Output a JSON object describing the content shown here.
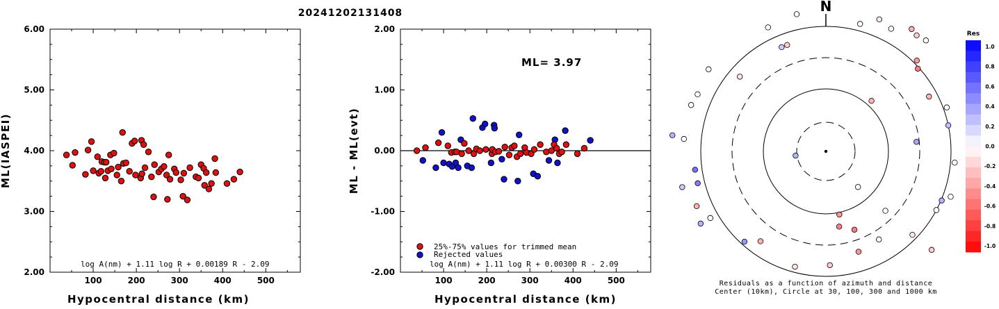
{
  "page_title": "20241202131408",
  "colors": {
    "accepted": "#dd1111",
    "rejected": "#1111cc",
    "outline": "#000000"
  },
  "chart_data": [
    {
      "type": "scatter",
      "id": "left",
      "ylabel": "ML(IASPEI)",
      "xlabel": "Hypocentral distance (km)",
      "xlim": [
        0,
        580
      ],
      "ylim": [
        2.0,
        6.0
      ],
      "xticks": [
        100,
        200,
        300,
        400,
        500
      ],
      "yticks": [
        2.0,
        3.0,
        4.0,
        5.0,
        6.0
      ],
      "ytick_labels": [
        "2.00",
        "3.00",
        "4.00",
        "5.00",
        "6.00"
      ],
      "formula": "log A(nm) + 1.11 log R + 0.00189 R - 2.09",
      "points": [
        [
          38,
          3.93
        ],
        [
          52,
          3.76
        ],
        [
          58,
          3.97
        ],
        [
          82,
          3.61
        ],
        [
          88,
          4.01
        ],
        [
          96,
          4.15
        ],
        [
          100,
          3.67
        ],
        [
          110,
          3.9
        ],
        [
          113,
          3.63
        ],
        [
          118,
          3.66
        ],
        [
          120,
          3.82
        ],
        [
          126,
          3.81
        ],
        [
          128,
          3.55
        ],
        [
          130,
          3.81
        ],
        [
          134,
          3.67
        ],
        [
          140,
          3.93
        ],
        [
          142,
          3.7
        ],
        [
          148,
          3.96
        ],
        [
          155,
          3.6
        ],
        [
          158,
          3.73
        ],
        [
          165,
          3.5
        ],
        [
          168,
          4.3
        ],
        [
          170,
          3.79
        ],
        [
          176,
          3.8
        ],
        [
          184,
          3.66
        ],
        [
          190,
          4.12
        ],
        [
          196,
          4.16
        ],
        [
          198,
          3.6
        ],
        [
          210,
          3.55
        ],
        [
          212,
          4.17
        ],
        [
          213,
          3.62
        ],
        [
          217,
          4.1
        ],
        [
          220,
          3.72
        ],
        [
          228,
          3.98
        ],
        [
          235,
          3.57
        ],
        [
          240,
          3.24
        ],
        [
          242,
          3.77
        ],
        [
          252,
          3.65
        ],
        [
          258,
          3.7
        ],
        [
          264,
          3.74
        ],
        [
          270,
          3.6
        ],
        [
          272,
          3.2
        ],
        [
          275,
          3.93
        ],
        [
          278,
          3.53
        ],
        [
          288,
          3.7
        ],
        [
          292,
          3.64
        ],
        [
          303,
          3.52
        ],
        [
          308,
          3.25
        ],
        [
          310,
          3.63
        ],
        [
          318,
          3.19
        ],
        [
          324,
          3.72
        ],
        [
          338,
          3.57
        ],
        [
          344,
          3.55
        ],
        [
          350,
          3.77
        ],
        [
          356,
          3.71
        ],
        [
          358,
          3.43
        ],
        [
          362,
          3.64
        ],
        [
          368,
          3.37
        ],
        [
          374,
          3.46
        ],
        [
          382,
          3.87
        ],
        [
          384,
          3.64
        ],
        [
          410,
          3.46
        ],
        [
          426,
          3.53
        ],
        [
          440,
          3.65
        ]
      ]
    },
    {
      "type": "scatter",
      "id": "middle",
      "ylabel": "ML - ML(evt)",
      "xlabel": "Hypocentral distance (km)",
      "xlim": [
        0,
        580
      ],
      "ylim": [
        -2.0,
        2.0
      ],
      "xticks": [
        100,
        200,
        300,
        400,
        500
      ],
      "yticks": [
        -2.0,
        -1.0,
        0.0,
        1.0,
        2.0
      ],
      "ytick_labels": [
        "-2.00",
        "-1.00",
        "0.00",
        "1.00",
        "2.00"
      ],
      "reference_line": 0.0,
      "annotation": "ML= 3.97",
      "formula": "log A(nm) + 1.11 log R + 0.00300 R - 2.09",
      "legend": [
        {
          "label": "25%-75% values for trimmed mean",
          "color": "#dd1111"
        },
        {
          "label": "Rejected values",
          "color": "#1111cc"
        }
      ],
      "accepted": [
        [
          38,
          0.0
        ],
        [
          58,
          0.05
        ],
        [
          88,
          0.13
        ],
        [
          110,
          0.08
        ],
        [
          118,
          -0.03
        ],
        [
          126,
          -0.02
        ],
        [
          130,
          -0.02
        ],
        [
          142,
          -0.05
        ],
        [
          148,
          0.12
        ],
        [
          158,
          0.0
        ],
        [
          170,
          -0.05
        ],
        [
          176,
          0.03
        ],
        [
          184,
          0.0
        ],
        [
          198,
          0.02
        ],
        [
          212,
          -0.05
        ],
        [
          213,
          0.02
        ],
        [
          220,
          -0.02
        ],
        [
          228,
          -0.01
        ],
        [
          242,
          0.06
        ],
        [
          252,
          -0.07
        ],
        [
          258,
          0.05
        ],
        [
          264,
          0.08
        ],
        [
          270,
          -0.1
        ],
        [
          278,
          -0.05
        ],
        [
          288,
          0.05
        ],
        [
          292,
          -0.03
        ],
        [
          303,
          -0.05
        ],
        [
          310,
          0.02
        ],
        [
          324,
          0.1
        ],
        [
          338,
          -0.02
        ],
        [
          350,
          0.0
        ],
        [
          356,
          0.1
        ],
        [
          362,
          0.04
        ],
        [
          368,
          -0.05
        ],
        [
          374,
          -0.02
        ],
        [
          384,
          0.1
        ],
        [
          410,
          -0.05
        ],
        [
          426,
          0.04
        ]
      ],
      "rejected": [
        [
          52,
          -0.16
        ],
        [
          82,
          -0.28
        ],
        [
          96,
          0.3
        ],
        [
          100,
          -0.2
        ],
        [
          113,
          -0.22
        ],
        [
          120,
          -0.26
        ],
        [
          128,
          -0.2
        ],
        [
          134,
          -0.28
        ],
        [
          140,
          0.18
        ],
        [
          155,
          -0.25
        ],
        [
          165,
          -0.28
        ],
        [
          168,
          0.53
        ],
        [
          190,
          0.38
        ],
        [
          196,
          0.44
        ],
        [
          210,
          -0.2
        ],
        [
          217,
          0.42
        ],
        [
          218,
          0.37
        ],
        [
          235,
          -0.14
        ],
        [
          240,
          -0.47
        ],
        [
          272,
          -0.5
        ],
        [
          275,
          0.26
        ],
        [
          308,
          -0.38
        ],
        [
          318,
          -0.42
        ],
        [
          344,
          -0.16
        ],
        [
          358,
          0.18
        ],
        [
          364,
          -0.2
        ],
        [
          382,
          0.33
        ],
        [
          440,
          0.17
        ]
      ]
    },
    {
      "type": "polar-scatter",
      "id": "right",
      "north_label": "N",
      "caption_line1": "Residuals as a function of azimuth and distance",
      "caption_line2": "Center (10km), Circle at 30, 100, 300 and 1000 km",
      "rings_km": [
        30,
        100,
        300,
        1000
      ],
      "colorbar": {
        "title": "Res",
        "ticks": [
          "1.0",
          "0.8",
          "0.6",
          "0.4",
          "0.2",
          "0.0",
          "-0.2",
          "-0.4",
          "-0.6",
          "-0.8",
          "-1.0"
        ],
        "max_color": "#0000ff",
        "zero_color": "#ffffff",
        "min_color": "#ff0000"
      },
      "stations": [
        [
          1,
          240,
          0.1
        ],
        [
          4,
          242,
          0.0
        ],
        [
          9,
          244,
          -0.1
        ],
        [
          10,
          236,
          0.5
        ],
        [
          8,
          238,
          0.35
        ],
        [
          12,
          234,
          0.0
        ],
        [
          15,
          190,
          0.0
        ],
        [
          22,
          205,
          -0.1
        ],
        [
          28,
          200,
          0.0
        ],
        [
          35,
          215,
          -0.3
        ],
        [
          38,
          212,
          -0.2
        ],
        [
          42,
          215,
          0.0
        ],
        [
          45,
          185,
          -0.4
        ],
        [
          48,
          178,
          -0.5
        ],
        [
          62,
          168,
          -0.3
        ],
        [
          70,
          185,
          0.0
        ],
        [
          84,
          131,
          0.35
        ],
        [
          78,
          180,
          0.25
        ],
        [
          95,
          186,
          0.0
        ],
        [
          110,
          191,
          0.0
        ],
        [
          113,
          181,
          0.3
        ],
        [
          118,
          180,
          0.0
        ],
        [
          134,
          173,
          -0.1
        ],
        [
          133,
          208,
          -0.2
        ],
        [
          149,
          148,
          0.0
        ],
        [
          160,
          120,
          -0.5
        ],
        [
          162,
          152,
          -0.4
        ],
        [
          170,
          110,
          -0.5
        ],
        [
          178,
          164,
          -0.2
        ],
        [
          195,
          172,
          -0.1
        ],
        [
          216,
          160,
          -0.3
        ],
        [
          222,
          175,
          0.4
        ],
        [
          240,
          192,
          0.0
        ],
        [
          240,
          208,
          0.3
        ],
        [
          247,
          202,
          -0.3
        ],
        [
          256,
          190,
          0.5
        ],
        [
          256,
          213,
          0.2
        ],
        [
          262,
          190,
          0.55
        ],
        [
          275,
          205,
          0.0
        ],
        [
          276,
          222,
          0.3
        ],
        [
          289,
          205,
          0.0
        ],
        [
          294,
          202,
          0.0
        ],
        [
          305,
          206,
          0.0
        ],
        [
          311,
          164,
          -0.1
        ],
        [
          340,
          163,
          -0.2
        ],
        [
          335,
          197,
          0.0
        ],
        [
          337,
          163,
          0.2
        ],
        [
          348,
          202,
          0.0
        ],
        [
          138,
          69,
          0.0
        ],
        [
          168,
          93,
          -0.4
        ],
        [
          42,
          98,
          -0.3
        ],
        [
          135,
          121,
          0.0
        ],
        [
          262,
          44,
          0.3
        ]
      ]
    }
  ]
}
